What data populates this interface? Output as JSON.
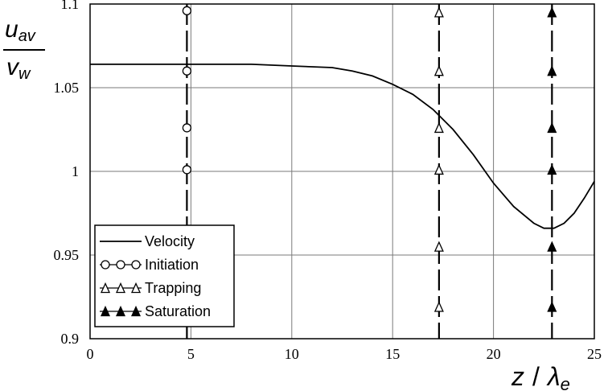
{
  "chart_data": {
    "type": "line",
    "title": "",
    "xlabel": {
      "main": "z",
      "sep": "/",
      "sym": "λ",
      "sub": "e"
    },
    "ylabel": {
      "num_main": "u",
      "num_sub": "av",
      "den_main": "v",
      "den_sub": "w"
    },
    "xlim": [
      0,
      25
    ],
    "ylim": [
      0.9,
      1.1
    ],
    "x_ticks": [
      0,
      5,
      10,
      15,
      20,
      25
    ],
    "y_ticks": [
      0.9,
      0.95,
      1,
      1.05,
      1.1
    ],
    "x_tick_labels": [
      "0",
      "5",
      "10",
      "15",
      "20",
      "25"
    ],
    "y_tick_labels": [
      "0.9",
      "0.95",
      "1",
      "1.05",
      "1.1"
    ],
    "grid": true,
    "legend_position": "bottom-left",
    "series": [
      {
        "name": "Velocity",
        "style": "solid",
        "x": [
          0,
          2,
          4,
          6,
          8,
          10,
          12,
          13,
          14,
          15,
          16,
          17,
          18,
          19,
          20,
          21,
          22,
          22.5,
          23,
          23.5,
          24,
          24.5,
          25
        ],
        "y": [
          1.064,
          1.064,
          1.064,
          1.064,
          1.064,
          1.063,
          1.062,
          1.06,
          1.057,
          1.052,
          1.046,
          1.037,
          1.025,
          1.01,
          0.993,
          0.979,
          0.969,
          0.966,
          0.966,
          0.969,
          0.975,
          0.984,
          0.994
        ]
      },
      {
        "name": "Initiation",
        "style": "dashed-vertical",
        "marker": "circle-open",
        "x_line": 4.8,
        "marker_y": [
          1.096,
          1.06,
          1.026,
          1.001
        ]
      },
      {
        "name": "Trapping",
        "style": "dashed-vertical",
        "marker": "triangle-open",
        "x_line": 17.3,
        "marker_y": [
          1.095,
          1.06,
          1.026,
          1.001,
          0.955,
          0.919
        ]
      },
      {
        "name": "Saturation",
        "style": "dashed-vertical",
        "marker": "triangle-filled",
        "x_line": 22.9,
        "marker_y": [
          1.095,
          1.06,
          1.026,
          1.001,
          0.955,
          0.919
        ]
      }
    ]
  }
}
